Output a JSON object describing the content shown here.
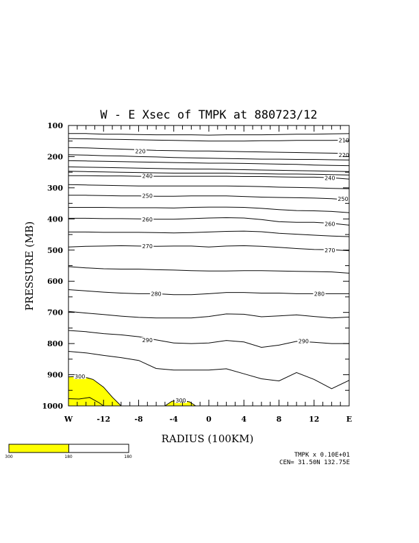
{
  "title": "W - E Xsec of TMPK at 880723/12",
  "footer": {
    "line1": "TMPK x  0.10E+01",
    "line2": "CEN= 31.50N  132.75E"
  },
  "colors": {
    "fill": "#ffff00",
    "line": "#000000",
    "background": "#ffffff"
  },
  "chart_data": {
    "type": "contour",
    "title": "W - E Xsec of TMPK at 880723/12",
    "xlabel": "RADIUS (100KM)",
    "ylabel": "PRESSURE (MB)",
    "xlim": [
      -16,
      16
    ],
    "ylim": [
      1000,
      100
    ],
    "x_ticks": [
      {
        "v": -16,
        "label": "W"
      },
      {
        "v": -12,
        "label": "-12"
      },
      {
        "v": -8,
        "label": "-8"
      },
      {
        "v": -4,
        "label": "-4"
      },
      {
        "v": 0,
        "label": "0"
      },
      {
        "v": 4,
        "label": "4"
      },
      {
        "v": 8,
        "label": "8"
      },
      {
        "v": 12,
        "label": "12"
      },
      {
        "v": 16,
        "label": "E"
      }
    ],
    "y_ticks": [
      {
        "v": 100,
        "label": "100"
      },
      {
        "v": 200,
        "label": "200"
      },
      {
        "v": 300,
        "label": "300"
      },
      {
        "v": 400,
        "label": "400"
      },
      {
        "v": 500,
        "label": "500"
      },
      {
        "v": 600,
        "label": "600"
      },
      {
        "v": 700,
        "label": "700"
      },
      {
        "v": 800,
        "label": "800"
      },
      {
        "v": 900,
        "label": "900"
      },
      {
        "v": 1000,
        "label": "1000"
      }
    ],
    "shading": {
      "threshold": 300,
      "color": "#ffff00"
    },
    "contour_labels": [
      {
        "text": "210",
        "x": 15.4,
        "p": 147
      },
      {
        "text": "220",
        "x": -7.8,
        "p": 182
      },
      {
        "text": "220",
        "x": 15.4,
        "p": 195
      },
      {
        "text": "240",
        "x": -7.0,
        "p": 262
      },
      {
        "text": "240",
        "x": 13.8,
        "p": 268
      },
      {
        "text": "250",
        "x": -7.0,
        "p": 325
      },
      {
        "text": "250",
        "x": 15.3,
        "p": 335
      },
      {
        "text": "260",
        "x": -7.0,
        "p": 401
      },
      {
        "text": "260",
        "x": 13.8,
        "p": 416
      },
      {
        "text": "270",
        "x": -7.0,
        "p": 487
      },
      {
        "text": "270",
        "x": 13.8,
        "p": 501
      },
      {
        "text": "280",
        "x": -6.0,
        "p": 640
      },
      {
        "text": "280",
        "x": 12.6,
        "p": 640
      },
      {
        "text": "290",
        "x": -7.0,
        "p": 789
      },
      {
        "text": "290",
        "x": 10.8,
        "p": 792
      },
      {
        "text": "300",
        "x": -14.7,
        "p": 905
      },
      {
        "text": "300",
        "x": -3.2,
        "p": 982
      }
    ],
    "contours": [
      {
        "p": [
          126,
          126,
          128,
          128,
          129,
          130,
          130,
          130,
          131,
          130,
          130,
          130,
          129,
          128,
          128,
          127,
          126
        ]
      },
      {
        "p": [
          142,
          143,
          144,
          145,
          146,
          147,
          148,
          149,
          150,
          150,
          150,
          149,
          149,
          148,
          148,
          148,
          147
        ]
      },
      {
        "p": [
          171,
          172,
          174,
          176,
          178,
          180,
          181,
          182,
          182,
          183,
          184,
          185,
          186,
          187,
          188,
          189,
          190
        ]
      },
      {
        "p": [
          194,
          195,
          197,
          198,
          200,
          201,
          203,
          204,
          205,
          206,
          207,
          208,
          208,
          209,
          209,
          210,
          211
        ]
      },
      {
        "p": [
          213,
          214,
          215,
          216,
          217,
          218,
          219,
          220,
          221,
          221,
          222,
          223,
          224,
          225,
          227,
          228,
          229
        ]
      },
      {
        "p": [
          233,
          234,
          235,
          236,
          237,
          238,
          239,
          240,
          240,
          241,
          242,
          243,
          244,
          245,
          246,
          247,
          248
        ]
      },
      {
        "p": [
          247,
          248,
          249,
          250,
          251,
          252,
          253,
          253,
          253,
          253,
          254,
          255,
          256,
          256,
          257,
          258,
          259
        ]
      },
      {
        "p": [
          261,
          261,
          262,
          262,
          263,
          263,
          263,
          263,
          263,
          263,
          264,
          264,
          265,
          266,
          266,
          268,
          272
        ]
      },
      {
        "p": [
          290,
          291,
          292,
          293,
          294,
          294,
          294,
          294,
          294,
          294,
          295,
          296,
          298,
          299,
          300,
          302,
          303
        ]
      },
      {
        "p": [
          324,
          324,
          325,
          326,
          326,
          327,
          327,
          326,
          326,
          326,
          328,
          330,
          331,
          332,
          333,
          335,
          339
        ]
      },
      {
        "p": [
          363,
          363,
          363,
          364,
          364,
          364,
          365,
          363,
          362,
          362,
          363,
          366,
          370,
          373,
          374,
          376,
          380
        ]
      },
      {
        "p": [
          398,
          398,
          399,
          399,
          400,
          401,
          401,
          399,
          397,
          396,
          397,
          402,
          409,
          411,
          411,
          414,
          420
        ]
      },
      {
        "p": [
          442,
          442,
          443,
          443,
          443,
          444,
          445,
          444,
          442,
          440,
          439,
          441,
          446,
          449,
          452,
          455,
          457
        ]
      },
      {
        "p": [
          490,
          488,
          487,
          486,
          487,
          488,
          487,
          487,
          490,
          487,
          486,
          488,
          491,
          495,
          498,
          499,
          502
        ]
      },
      {
        "p": [
          553,
          557,
          560,
          561,
          561,
          563,
          564,
          566,
          567,
          567,
          566,
          566,
          567,
          568,
          569,
          570,
          574
        ]
      },
      {
        "p": [
          627,
          631,
          635,
          638,
          640,
          640,
          643,
          643,
          640,
          636,
          636,
          638,
          638,
          640,
          640,
          640,
          640
        ]
      },
      {
        "p": [
          697,
          702,
          707,
          712,
          716,
          718,
          718,
          718,
          713,
          705,
          706,
          714,
          711,
          708,
          713,
          718,
          715
        ]
      },
      {
        "p": [
          758,
          762,
          768,
          772,
          778,
          788,
          798,
          800,
          798,
          790,
          795,
          812,
          805,
          793,
          796,
          800,
          800
        ]
      },
      {
        "p": [
          825,
          830,
          838,
          845,
          854,
          880,
          885,
          885,
          885,
          881,
          897,
          913,
          920,
          893,
          915,
          945,
          918
        ]
      }
    ],
    "isotherm_300": [
      {
        "x": -16.0,
        "p": 907
      },
      {
        "x": -14.5,
        "p": 905
      },
      {
        "x": -13.2,
        "p": 915
      },
      {
        "x": -12.0,
        "p": 940
      },
      {
        "x": -11.0,
        "p": 972
      },
      {
        "x": -10.0,
        "p": 1000
      }
    ],
    "isotherm_300_inner": [
      {
        "x": -16.0,
        "p": 977
      },
      {
        "x": -14.8,
        "p": 978
      },
      {
        "x": -13.6,
        "p": 973
      },
      {
        "x": -12.5,
        "p": 990
      },
      {
        "x": -12.0,
        "p": 1000
      }
    ],
    "bump_300": [
      {
        "x": -5.0,
        "p": 1000
      },
      {
        "x": -4.2,
        "p": 985
      },
      {
        "x": -3.2,
        "p": 982
      },
      {
        "x": -2.2,
        "p": 987
      },
      {
        "x": -1.5,
        "p": 1000
      }
    ],
    "colorbar": {
      "labels": [
        "300",
        "180",
        "180"
      ],
      "segments": [
        {
          "color": "#ffff00",
          "frac": 0.5
        },
        {
          "color": "#ffffff",
          "frac": 0.5
        }
      ]
    }
  }
}
